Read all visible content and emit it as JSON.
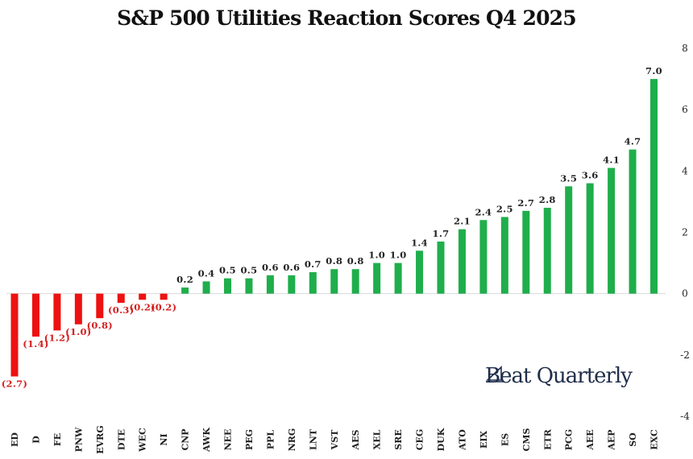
{
  "chart_data": {
    "type": "bar",
    "title": "S&P 500 Utilities Reaction Scores Q4 2025",
    "xlabel": "",
    "ylabel": "",
    "ylim": [
      -4,
      8
    ],
    "yticks": [
      -4,
      -2,
      0,
      2,
      4,
      6,
      8
    ],
    "grid": false,
    "y_axis_side": "right",
    "categories": [
      "ED",
      "D",
      "FE",
      "PNW",
      "EVRG",
      "DTE",
      "WEC",
      "NI",
      "CNP",
      "AWK",
      "NEE",
      "PEG",
      "PPL",
      "NRG",
      "LNT",
      "VST",
      "AES",
      "XEL",
      "SRE",
      "CEG",
      "DUK",
      "ATO",
      "EIX",
      "ES",
      "CMS",
      "ETR",
      "PCG",
      "AEE",
      "AEP",
      "SO",
      "EXC"
    ],
    "values": [
      -2.7,
      -1.4,
      -1.2,
      -1.0,
      -0.8,
      -0.3,
      -0.2,
      -0.2,
      0.2,
      0.4,
      0.5,
      0.5,
      0.6,
      0.6,
      0.7,
      0.8,
      0.8,
      1.0,
      1.0,
      1.4,
      1.7,
      2.1,
      2.4,
      2.5,
      2.7,
      2.8,
      3.5,
      3.6,
      4.1,
      4.7,
      7.0
    ],
    "value_labels": [
      "(2.7)",
      "(1.4)",
      "(1.2)",
      "(1.0)",
      "(0.8)",
      "(0.3)",
      "(0.2)",
      "(0.2)",
      "0.2",
      "0.4",
      "0.5",
      "0.5",
      "0.6",
      "0.6",
      "0.7",
      "0.8",
      "0.8",
      "1.0",
      "1.0",
      "1.4",
      "1.7",
      "2.1",
      "2.4",
      "2.5",
      "2.7",
      "2.8",
      "3.5",
      "3.6",
      "4.1",
      "4.7",
      "7.0"
    ],
    "colors": {
      "positive": "#1fae4b",
      "negative": "#ee1111",
      "negative_label": "#d42020",
      "text": "#222222"
    }
  },
  "branding": {
    "name": "Beat Quarterly",
    "icon": "sail-icon",
    "color": "#1f2d4a"
  }
}
